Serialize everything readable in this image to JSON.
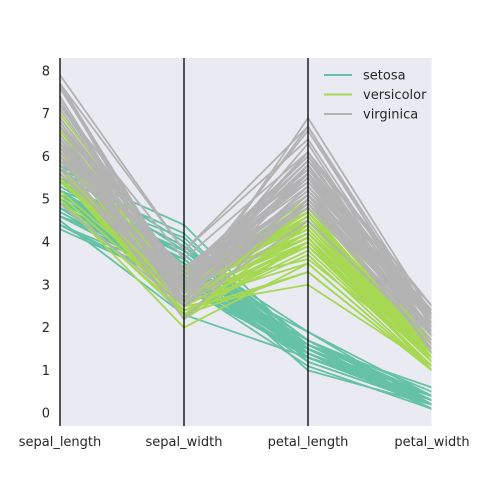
{
  "chart_data": {
    "type": "parallel_coordinates",
    "dimensions": [
      "sepal_length",
      "sepal_width",
      "petal_length",
      "petal_width"
    ],
    "ylim": [
      -0.3,
      8.3
    ],
    "yticks": [
      "0",
      "1",
      "2",
      "3",
      "4",
      "5",
      "6",
      "7",
      "8"
    ],
    "background": "#eaeaf2",
    "legend_position": "upper right",
    "grid": false,
    "series": [
      {
        "name": "setosa",
        "color": "#66c2a5",
        "lines": [
          [
            5.1,
            3.5,
            1.4,
            0.2
          ],
          [
            4.9,
            3.0,
            1.4,
            0.2
          ],
          [
            4.7,
            3.2,
            1.3,
            0.2
          ],
          [
            4.6,
            3.1,
            1.5,
            0.2
          ],
          [
            5.0,
            3.6,
            1.4,
            0.2
          ],
          [
            5.4,
            3.9,
            1.7,
            0.4
          ],
          [
            4.6,
            3.4,
            1.4,
            0.3
          ],
          [
            5.0,
            3.4,
            1.5,
            0.2
          ],
          [
            4.4,
            2.9,
            1.4,
            0.2
          ],
          [
            4.9,
            3.1,
            1.5,
            0.1
          ],
          [
            5.4,
            3.7,
            1.5,
            0.2
          ],
          [
            4.8,
            3.4,
            1.6,
            0.2
          ],
          [
            4.8,
            3.0,
            1.4,
            0.1
          ],
          [
            4.3,
            3.0,
            1.1,
            0.1
          ],
          [
            5.8,
            4.0,
            1.2,
            0.2
          ],
          [
            5.7,
            4.4,
            1.5,
            0.4
          ],
          [
            5.4,
            3.9,
            1.3,
            0.4
          ],
          [
            5.1,
            3.5,
            1.4,
            0.3
          ],
          [
            5.7,
            3.8,
            1.7,
            0.3
          ],
          [
            5.1,
            3.8,
            1.5,
            0.3
          ],
          [
            5.4,
            3.4,
            1.7,
            0.2
          ],
          [
            5.1,
            3.7,
            1.5,
            0.4
          ],
          [
            4.6,
            3.6,
            1.0,
            0.2
          ],
          [
            5.1,
            3.3,
            1.7,
            0.5
          ],
          [
            4.8,
            3.4,
            1.9,
            0.2
          ],
          [
            5.0,
            3.0,
            1.6,
            0.2
          ],
          [
            5.0,
            3.4,
            1.6,
            0.4
          ],
          [
            5.2,
            3.5,
            1.5,
            0.2
          ],
          [
            5.2,
            3.4,
            1.4,
            0.2
          ],
          [
            4.7,
            3.2,
            1.6,
            0.2
          ],
          [
            4.8,
            3.1,
            1.6,
            0.2
          ],
          [
            5.4,
            3.4,
            1.5,
            0.4
          ],
          [
            5.2,
            4.1,
            1.5,
            0.1
          ],
          [
            5.5,
            4.2,
            1.4,
            0.2
          ],
          [
            4.9,
            3.1,
            1.5,
            0.2
          ],
          [
            5.0,
            3.2,
            1.2,
            0.2
          ],
          [
            5.5,
            3.5,
            1.3,
            0.2
          ],
          [
            4.9,
            3.6,
            1.4,
            0.1
          ],
          [
            4.4,
            3.0,
            1.3,
            0.2
          ],
          [
            5.1,
            3.4,
            1.5,
            0.2
          ],
          [
            5.0,
            3.5,
            1.3,
            0.3
          ],
          [
            4.5,
            2.3,
            1.3,
            0.3
          ],
          [
            4.4,
            3.2,
            1.3,
            0.2
          ],
          [
            5.0,
            3.5,
            1.6,
            0.6
          ],
          [
            5.1,
            3.8,
            1.9,
            0.4
          ],
          [
            4.8,
            3.0,
            1.4,
            0.3
          ],
          [
            5.1,
            3.8,
            1.6,
            0.2
          ],
          [
            4.6,
            3.2,
            1.4,
            0.2
          ],
          [
            5.3,
            3.7,
            1.5,
            0.2
          ],
          [
            5.0,
            3.3,
            1.4,
            0.2
          ]
        ]
      },
      {
        "name": "versicolor",
        "color": "#a6d854",
        "lines": [
          [
            7.0,
            3.2,
            4.7,
            1.4
          ],
          [
            6.4,
            3.2,
            4.5,
            1.5
          ],
          [
            6.9,
            3.1,
            4.9,
            1.5
          ],
          [
            5.5,
            2.3,
            4.0,
            1.3
          ],
          [
            6.5,
            2.8,
            4.6,
            1.5
          ],
          [
            5.7,
            2.8,
            4.5,
            1.3
          ],
          [
            6.3,
            3.3,
            4.7,
            1.6
          ],
          [
            4.9,
            2.4,
            3.3,
            1.0
          ],
          [
            6.6,
            2.9,
            4.6,
            1.3
          ],
          [
            5.2,
            2.7,
            3.9,
            1.4
          ],
          [
            5.0,
            2.0,
            3.5,
            1.0
          ],
          [
            5.9,
            3.0,
            4.2,
            1.5
          ],
          [
            6.0,
            2.2,
            4.0,
            1.0
          ],
          [
            6.1,
            2.9,
            4.7,
            1.4
          ],
          [
            5.6,
            2.9,
            3.6,
            1.3
          ],
          [
            6.7,
            3.1,
            4.4,
            1.4
          ],
          [
            5.6,
            3.0,
            4.5,
            1.5
          ],
          [
            5.8,
            2.7,
            4.1,
            1.0
          ],
          [
            6.2,
            2.2,
            4.5,
            1.5
          ],
          [
            5.6,
            2.5,
            3.9,
            1.1
          ],
          [
            5.9,
            3.2,
            4.8,
            1.8
          ],
          [
            6.1,
            2.8,
            4.0,
            1.3
          ],
          [
            6.3,
            2.5,
            4.9,
            1.5
          ],
          [
            6.1,
            2.8,
            4.7,
            1.2
          ],
          [
            6.4,
            2.9,
            4.3,
            1.3
          ],
          [
            6.6,
            3.0,
            4.4,
            1.4
          ],
          [
            6.8,
            2.8,
            4.8,
            1.4
          ],
          [
            6.7,
            3.0,
            5.0,
            1.7
          ],
          [
            6.0,
            2.9,
            4.5,
            1.5
          ],
          [
            5.7,
            2.6,
            3.5,
            1.0
          ],
          [
            5.5,
            2.4,
            3.8,
            1.1
          ],
          [
            5.5,
            2.4,
            3.7,
            1.0
          ],
          [
            5.8,
            2.7,
            3.9,
            1.2
          ],
          [
            6.0,
            2.7,
            5.1,
            1.6
          ],
          [
            5.4,
            3.0,
            4.5,
            1.5
          ],
          [
            6.0,
            3.4,
            4.5,
            1.6
          ],
          [
            6.7,
            3.1,
            4.7,
            1.5
          ],
          [
            6.3,
            2.3,
            4.4,
            1.3
          ],
          [
            5.6,
            3.0,
            4.1,
            1.3
          ],
          [
            5.5,
            2.5,
            4.0,
            1.3
          ],
          [
            5.5,
            2.6,
            4.4,
            1.2
          ],
          [
            6.1,
            3.0,
            4.6,
            1.4
          ],
          [
            5.8,
            2.6,
            4.0,
            1.2
          ],
          [
            5.0,
            2.3,
            3.3,
            1.0
          ],
          [
            5.6,
            2.7,
            4.2,
            1.3
          ],
          [
            5.7,
            3.0,
            4.2,
            1.2
          ],
          [
            5.7,
            2.9,
            4.2,
            1.3
          ],
          [
            6.2,
            2.9,
            4.3,
            1.3
          ],
          [
            5.1,
            2.5,
            3.0,
            1.1
          ],
          [
            5.7,
            2.8,
            4.1,
            1.3
          ]
        ]
      },
      {
        "name": "virginica",
        "color": "#b3b3b3",
        "lines": [
          [
            6.3,
            3.3,
            6.0,
            2.5
          ],
          [
            5.8,
            2.7,
            5.1,
            1.9
          ],
          [
            7.1,
            3.0,
            5.9,
            2.1
          ],
          [
            6.3,
            2.9,
            5.6,
            1.8
          ],
          [
            6.5,
            3.0,
            5.8,
            2.2
          ],
          [
            7.6,
            3.0,
            6.6,
            2.1
          ],
          [
            4.9,
            2.5,
            4.5,
            1.7
          ],
          [
            7.3,
            2.9,
            6.3,
            1.8
          ],
          [
            6.7,
            2.5,
            5.8,
            1.8
          ],
          [
            7.2,
            3.6,
            6.1,
            2.5
          ],
          [
            6.5,
            3.2,
            5.1,
            2.0
          ],
          [
            6.4,
            2.7,
            5.3,
            1.9
          ],
          [
            6.8,
            3.0,
            5.5,
            2.1
          ],
          [
            5.7,
            2.5,
            5.0,
            2.0
          ],
          [
            5.8,
            2.8,
            5.1,
            2.4
          ],
          [
            6.4,
            3.2,
            5.3,
            2.3
          ],
          [
            6.5,
            3.0,
            5.5,
            1.8
          ],
          [
            7.7,
            3.8,
            6.7,
            2.2
          ],
          [
            7.7,
            2.6,
            6.9,
            2.3
          ],
          [
            6.0,
            2.2,
            5.0,
            1.5
          ],
          [
            6.9,
            3.2,
            5.7,
            2.3
          ],
          [
            5.6,
            2.8,
            4.9,
            2.0
          ],
          [
            7.7,
            2.8,
            6.7,
            2.0
          ],
          [
            6.3,
            2.7,
            4.9,
            1.8
          ],
          [
            6.7,
            3.3,
            5.7,
            2.1
          ],
          [
            7.2,
            3.2,
            6.0,
            1.8
          ],
          [
            6.2,
            2.8,
            4.8,
            1.8
          ],
          [
            6.1,
            3.0,
            4.9,
            1.8
          ],
          [
            6.4,
            2.8,
            5.6,
            2.1
          ],
          [
            7.2,
            3.0,
            5.8,
            1.6
          ],
          [
            7.4,
            2.8,
            6.1,
            1.9
          ],
          [
            7.9,
            3.8,
            6.4,
            2.0
          ],
          [
            6.4,
            2.8,
            5.6,
            2.2
          ],
          [
            6.3,
            2.8,
            5.1,
            1.5
          ],
          [
            6.1,
            2.6,
            5.6,
            1.4
          ],
          [
            7.7,
            3.0,
            6.1,
            2.3
          ],
          [
            6.3,
            3.4,
            5.6,
            2.4
          ],
          [
            6.4,
            3.1,
            5.5,
            1.8
          ],
          [
            6.0,
            3.0,
            4.8,
            1.8
          ],
          [
            6.9,
            3.1,
            5.4,
            2.1
          ],
          [
            6.7,
            3.1,
            5.6,
            2.4
          ],
          [
            6.9,
            3.1,
            5.1,
            2.3
          ],
          [
            5.8,
            2.7,
            5.1,
            1.9
          ],
          [
            6.8,
            3.2,
            5.9,
            2.3
          ],
          [
            6.7,
            3.3,
            5.7,
            2.5
          ],
          [
            6.7,
            3.0,
            5.2,
            2.3
          ],
          [
            6.3,
            2.5,
            5.0,
            1.9
          ],
          [
            6.5,
            3.0,
            5.2,
            2.0
          ],
          [
            6.2,
            3.4,
            5.4,
            2.3
          ],
          [
            5.9,
            3.0,
            5.1,
            1.8
          ]
        ]
      }
    ]
  }
}
